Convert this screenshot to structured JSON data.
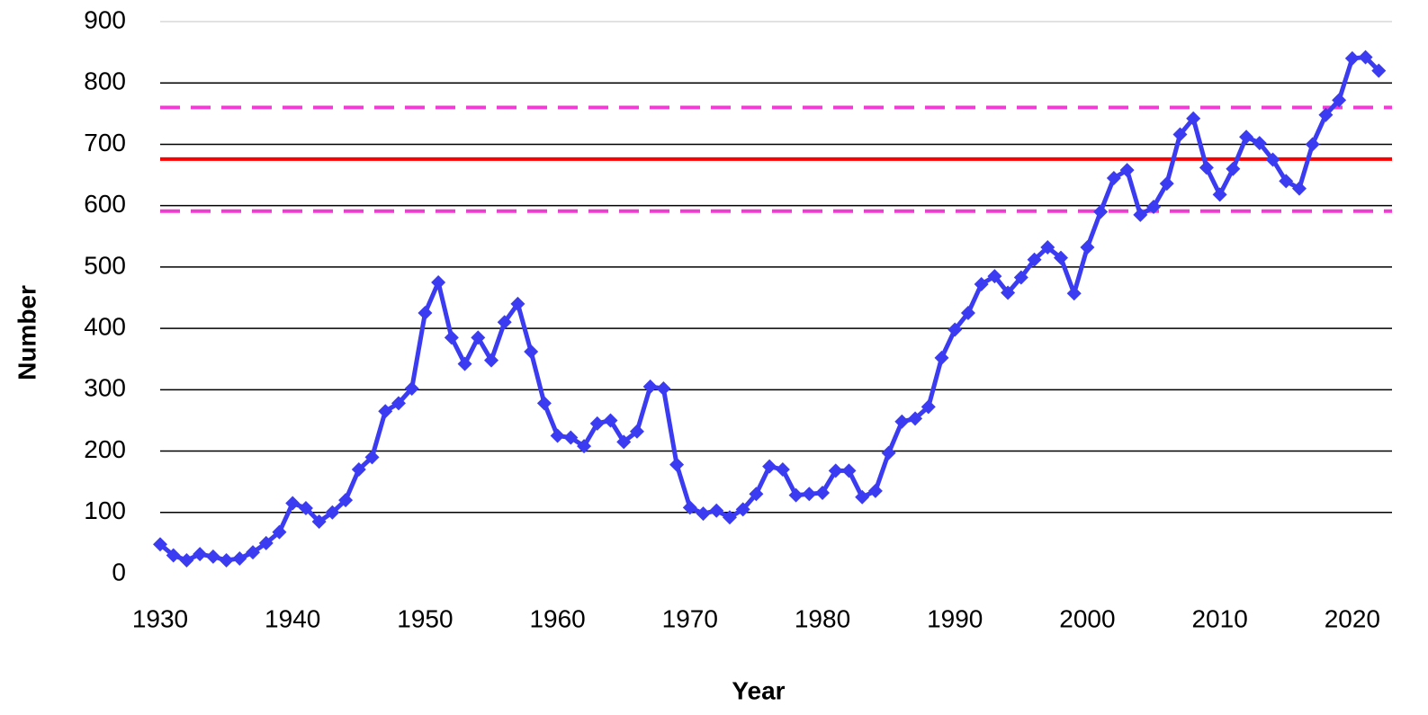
{
  "chart_data": {
    "type": "line",
    "x_label": "Year",
    "y_label": "Number",
    "x": [
      1930,
      1931,
      1932,
      1933,
      1934,
      1935,
      1936,
      1937,
      1938,
      1939,
      1940,
      1941,
      1942,
      1943,
      1944,
      1945,
      1946,
      1947,
      1948,
      1949,
      1950,
      1951,
      1952,
      1953,
      1954,
      1955,
      1956,
      1957,
      1958,
      1959,
      1960,
      1961,
      1962,
      1963,
      1964,
      1965,
      1966,
      1967,
      1968,
      1969,
      1970,
      1971,
      1972,
      1973,
      1974,
      1975,
      1976,
      1977,
      1978,
      1979,
      1980,
      1981,
      1982,
      1983,
      1984,
      1985,
      1986,
      1987,
      1988,
      1989,
      1990,
      1991,
      1992,
      1993,
      1994,
      1995,
      1996,
      1997,
      1998,
      1999,
      2000,
      2001,
      2002,
      2003,
      2004,
      2005,
      2006,
      2007,
      2008,
      2009,
      2010,
      2011,
      2012,
      2013,
      2014,
      2015,
      2016,
      2017,
      2018,
      2019,
      2020,
      2021,
      2022
    ],
    "series": [
      {
        "color": "#3b3bf2",
        "values": [
          48,
          30,
          22,
          32,
          28,
          22,
          25,
          35,
          50,
          68,
          115,
          107,
          85,
          100,
          120,
          170,
          190,
          265,
          278,
          302,
          425,
          475,
          385,
          342,
          385,
          348,
          410,
          440,
          362,
          278,
          225,
          222,
          208,
          245,
          250,
          215,
          232,
          305,
          302,
          178,
          108,
          98,
          103,
          92,
          105,
          130,
          175,
          170,
          128,
          130,
          132,
          168,
          168,
          125,
          135,
          197,
          248,
          253,
          272,
          352,
          398,
          425,
          472,
          485,
          458,
          483,
          512,
          532,
          515,
          457,
          532,
          590,
          645,
          658,
          585,
          598,
          636,
          716,
          742,
          662,
          618,
          660,
          712,
          702,
          675,
          640,
          628,
          700,
          748,
          772,
          840,
          842,
          820
        ]
      }
    ],
    "reference_lines": [
      {
        "value": 676,
        "color": "#ff0000",
        "style": "solid"
      },
      {
        "value": 760,
        "color": "#f03cd2",
        "style": "dashed"
      },
      {
        "value": 591,
        "color": "#f03cd2",
        "style": "dashed"
      }
    ],
    "xlim": [
      1930,
      2023
    ],
    "xticks": [
      1930,
      1940,
      1950,
      1960,
      1970,
      1980,
      1990,
      2000,
      2010,
      2020
    ],
    "ylim": [
      0,
      900
    ],
    "yticks": [
      0,
      100,
      200,
      300,
      400,
      500,
      600,
      700,
      800,
      900
    ],
    "grid": true
  }
}
